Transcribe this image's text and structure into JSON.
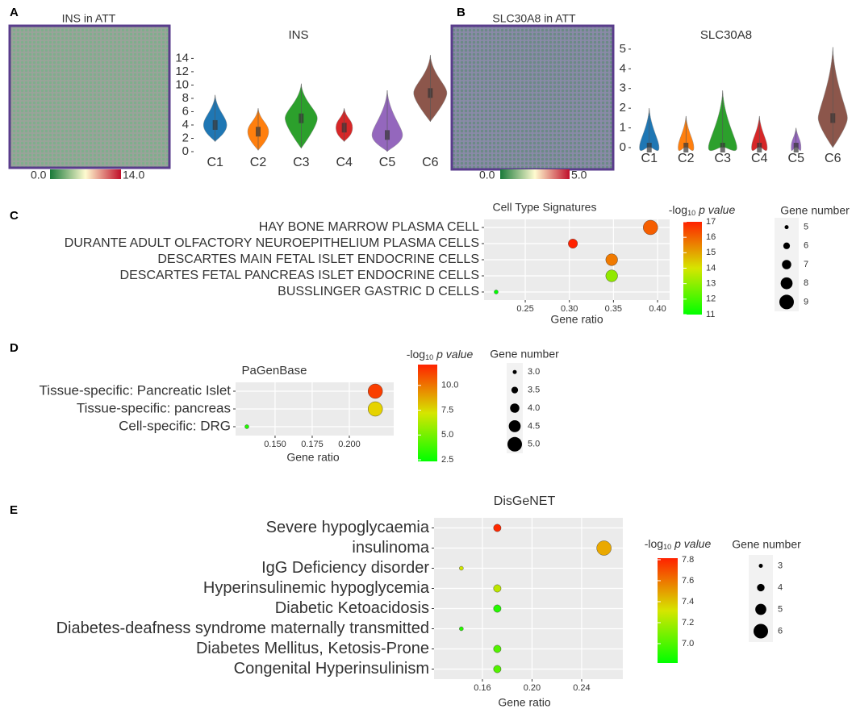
{
  "spatial_maps": [
    {
      "panel": "A",
      "title": "INS in ATT",
      "colorbar_labels": [
        "0.0",
        "14.0"
      ]
    },
    {
      "panel": "B",
      "title": "SLC30A8 in ATT",
      "colorbar_labels": [
        "0.0",
        "5.0"
      ]
    }
  ],
  "chart_data": [
    {
      "type": "violin",
      "title": "INS",
      "categories": [
        "C1",
        "C2",
        "C3",
        "C4",
        "C5",
        "C6"
      ],
      "colors": [
        "#1f77b4",
        "#ff7f0e",
        "#2ca02c",
        "#d62728",
        "#9467bd",
        "#8c564b"
      ],
      "values": [
        4,
        3,
        5,
        3.6,
        2.5,
        8.8
      ],
      "min": [
        1.5,
        0.2,
        0.5,
        1.5,
        0,
        4.5
      ],
      "max": [
        8.5,
        6.5,
        10.2,
        6.5,
        9.2,
        14.5
      ],
      "ylim": [
        0,
        15.5
      ],
      "yticks": [
        0,
        2,
        4,
        6,
        8,
        10,
        12,
        14
      ]
    },
    {
      "type": "violin",
      "title": "SLC30A8",
      "categories": [
        "C1",
        "C2",
        "C3",
        "C4",
        "C5",
        "C6"
      ],
      "colors": [
        "#1f77b4",
        "#ff7f0e",
        "#2ca02c",
        "#d62728",
        "#9467bd",
        "#8c564b"
      ],
      "values": [
        0,
        0,
        0,
        0,
        0,
        1.5
      ],
      "min": [
        0,
        0,
        0,
        0,
        0,
        0
      ],
      "max": [
        2,
        1.6,
        2.9,
        1.6,
        1,
        5.1
      ],
      "ylim": [
        0,
        5.2
      ],
      "yticks": [
        0,
        1,
        2,
        3,
        4,
        5
      ]
    },
    {
      "type": "dot",
      "panel": "C",
      "title": "Cell Type Signatures",
      "x_label": "Gene ratio",
      "categories": [
        "HAY BONE MARROW PLASMA CELL",
        "DURANTE ADULT OLFACTORY NEUROEPITHELIUM PLASMA CELLS",
        "DESCARTES MAIN FETAL ISLET ENDOCRINE CELLS",
        "DESCARTES FETAL PANCREAS ISLET ENDOCRINE CELLS",
        "BUSSLINGER GASTRIC D CELLS"
      ],
      "x": [
        0.392,
        0.304,
        0.348,
        0.348,
        0.217
      ],
      "color_values": [
        16.2,
        17,
        15.8,
        13,
        11
      ],
      "sizes": [
        9,
        7,
        8,
        8,
        5
      ],
      "xlim": [
        0.2033,
        0.4137
      ],
      "xticks": [
        0.25,
        {
          "value": 0.3,
          "label": "0.30"
        },
        0.35,
        {
          "value": 0.4,
          "label": "0.40"
        }
      ],
      "color_title": {
        "text": "-log",
        "sub": "10",
        "unit": "p value"
      },
      "clim": [
        11,
        17
      ],
      "cticks": [
        11,
        12,
        13,
        14,
        15,
        16,
        17
      ],
      "size_title": "Gene number",
      "size_ticks": [
        5,
        6,
        7,
        8,
        9
      ]
    },
    {
      "type": "dot",
      "panel": "D",
      "title": "PaGenBase",
      "x_label": "Gene ratio",
      "categories": [
        "Tissue-specific: Pancreatic Islet",
        "Tissue-specific: pancreas",
        "Cell-specific: DRG"
      ],
      "x": [
        0.2175,
        0.2175,
        0.131
      ],
      "color_values": [
        11.5,
        8,
        3
      ],
      "sizes": [
        5,
        5,
        3
      ],
      "xlim": [
        0.1234,
        0.2299
      ],
      "xticks": [
        {
          "value": 0.15,
          "label": "0.150"
        },
        0.175,
        {
          "value": 0.2,
          "label": "0.200"
        }
      ],
      "color_title": {
        "text": "-log",
        "sub": "10",
        "unit": "p value"
      },
      "clim": [
        2.34,
        12.1
      ],
      "cticks": [
        2.5,
        {
          "value": 5,
          "label": "5.0"
        },
        7.5,
        {
          "value": 10,
          "label": "10.0"
        }
      ],
      "size_title": "Gene number",
      "size_ticks": [
        {
          "value": 3,
          "label": "3.0"
        },
        3.5,
        {
          "value": 4,
          "label": "4.0"
        },
        4.5,
        {
          "value": 5,
          "label": "5.0"
        }
      ]
    },
    {
      "type": "dot",
      "panel": "E",
      "title": "DisGeNET",
      "x_label": "Gene ratio",
      "categories": [
        "Severe hypoglycaemia",
        "insulinoma",
        "IgG Deficiency disorder",
        "Hyperinsulinemic hypoglycemia",
        "Diabetic Ketoacidosis",
        "Diabetes-deafness syndrome maternally transmitted",
        "Diabetes Mellitus, Ketosis-Prone",
        "Congenital Hyperinsulinism"
      ],
      "x": [
        0.172,
        0.258,
        0.143,
        0.172,
        0.172,
        0.143,
        0.172,
        0.172
      ],
      "color_values": [
        7.8,
        7.5,
        7.3,
        7.25,
        6.9,
        6.9,
        7.0,
        7.0
      ],
      "sizes": [
        4,
        6,
        3,
        4,
        4,
        3,
        4,
        4
      ],
      "xlim": [
        0.121,
        0.2732
      ],
      "xticks": [
        0.16,
        {
          "value": 0.2,
          "label": "0.20"
        },
        0.24
      ],
      "color_title": {
        "text": "-log",
        "sub": "10",
        "unit": "p value"
      },
      "clim": [
        6.815,
        7.815
      ],
      "cticks": [
        {
          "value": 7,
          "label": "7.0"
        },
        7.2,
        7.4,
        7.6,
        7.8
      ],
      "size_title": "Gene number",
      "size_ticks": [
        3,
        4,
        5,
        6
      ]
    }
  ]
}
